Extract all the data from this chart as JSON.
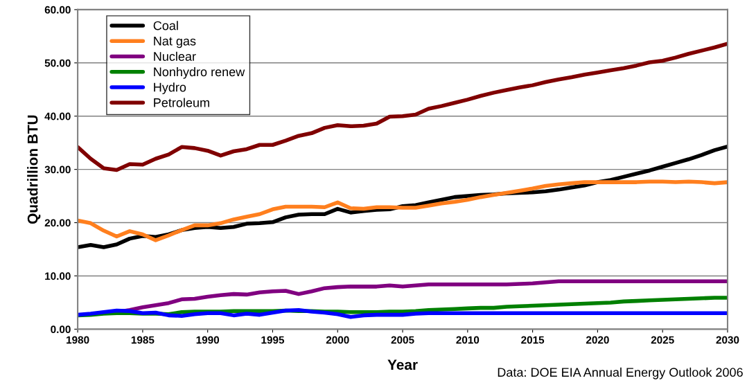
{
  "chart_data": {
    "type": "line",
    "ylabel": "Quadrillion BTU",
    "xlabel": "Year",
    "annotations": [
      "Data: DOE EIA Annual Energy Outlook 2006"
    ],
    "x": [
      1980,
      1981,
      1982,
      1983,
      1984,
      1985,
      1986,
      1987,
      1988,
      1989,
      1990,
      1991,
      1992,
      1993,
      1994,
      1995,
      1996,
      1997,
      1998,
      1999,
      2000,
      2001,
      2002,
      2003,
      2004,
      2005,
      2006,
      2007,
      2008,
      2009,
      2010,
      2011,
      2012,
      2013,
      2014,
      2015,
      2016,
      2017,
      2018,
      2019,
      2020,
      2021,
      2022,
      2023,
      2024,
      2025,
      2026,
      2027,
      2028,
      2029,
      2030
    ],
    "series": [
      {
        "name": "Coal",
        "color": "#000000",
        "values": [
          15.4,
          15.8,
          15.4,
          15.9,
          17.0,
          17.5,
          17.3,
          17.8,
          18.6,
          19.0,
          19.2,
          19.0,
          19.2,
          19.8,
          19.9,
          20.1,
          21.0,
          21.5,
          21.6,
          21.6,
          22.6,
          21.9,
          22.2,
          22.4,
          22.5,
          23.1,
          23.3,
          23.8,
          24.3,
          24.8,
          25.0,
          25.2,
          25.3,
          25.5,
          25.6,
          25.7,
          25.9,
          26.2,
          26.6,
          27.0,
          27.6,
          28.0,
          28.6,
          29.2,
          29.8,
          30.5,
          31.2,
          31.9,
          32.7,
          33.6,
          34.3
        ]
      },
      {
        "name": "Nat gas",
        "color": "#ff7f1e",
        "values": [
          20.4,
          19.9,
          18.5,
          17.4,
          18.4,
          17.8,
          16.7,
          17.6,
          18.6,
          19.5,
          19.5,
          19.9,
          20.6,
          21.1,
          21.6,
          22.5,
          23.0,
          23.0,
          23.0,
          22.9,
          23.8,
          22.7,
          22.6,
          22.9,
          22.9,
          22.8,
          22.8,
          23.2,
          23.6,
          23.9,
          24.3,
          24.8,
          25.2,
          25.6,
          26.0,
          26.4,
          26.9,
          27.2,
          27.4,
          27.6,
          27.6,
          27.6,
          27.6,
          27.6,
          27.7,
          27.7,
          27.6,
          27.7,
          27.6,
          27.4,
          27.6
        ]
      },
      {
        "name": "Nuclear",
        "color": "#800080",
        "values": [
          null,
          null,
          null,
          3.2,
          3.6,
          4.1,
          4.5,
          4.9,
          5.6,
          5.7,
          6.1,
          6.4,
          6.6,
          6.5,
          6.9,
          7.1,
          7.2,
          6.6,
          7.1,
          7.7,
          7.9,
          8.0,
          8.0,
          8.0,
          8.2,
          8.0,
          8.2,
          8.4,
          8.4,
          8.4,
          8.4,
          8.4,
          8.4,
          8.4,
          8.5,
          8.6,
          8.8,
          9.0,
          9.0,
          9.0,
          9.0,
          9.0,
          9.0,
          9.0,
          9.0,
          9.0,
          9.0,
          9.0,
          9.0,
          9.0,
          9.0
        ]
      },
      {
        "name": "Nonhydro renew",
        "color": "#008000",
        "values": [
          2.6,
          2.7,
          2.9,
          3.0,
          3.0,
          2.9,
          2.9,
          2.8,
          3.2,
          3.3,
          3.3,
          3.3,
          3.4,
          3.4,
          3.4,
          3.4,
          3.5,
          3.4,
          3.4,
          3.3,
          3.3,
          3.2,
          3.2,
          3.2,
          3.3,
          3.3,
          3.4,
          3.6,
          3.7,
          3.8,
          3.9,
          4.0,
          4.0,
          4.2,
          4.3,
          4.4,
          4.5,
          4.6,
          4.7,
          4.8,
          4.9,
          5.0,
          5.2,
          5.3,
          5.4,
          5.5,
          5.6,
          5.7,
          5.8,
          5.9,
          5.9
        ]
      },
      {
        "name": "Hydro",
        "color": "#0000ff",
        "values": [
          2.7,
          2.9,
          3.2,
          3.5,
          3.4,
          3.0,
          3.1,
          2.6,
          2.5,
          2.8,
          3.0,
          3.0,
          2.6,
          2.9,
          2.7,
          3.1,
          3.5,
          3.6,
          3.3,
          3.1,
          2.8,
          2.3,
          2.6,
          2.7,
          2.7,
          2.7,
          2.9,
          3.0,
          3.0,
          3.0,
          3.0,
          3.0,
          3.0,
          3.0,
          3.0,
          3.0,
          3.0,
          3.0,
          3.0,
          3.0,
          3.0,
          3.0,
          3.0,
          3.0,
          3.0,
          3.0,
          3.0,
          3.0,
          3.0,
          3.0,
          3.0
        ]
      },
      {
        "name": "Petroleum",
        "color": "#800000",
        "values": [
          34.2,
          32.0,
          30.2,
          29.9,
          31.0,
          30.9,
          32.0,
          32.8,
          34.2,
          34.0,
          33.5,
          32.6,
          33.4,
          33.8,
          34.6,
          34.6,
          35.4,
          36.3,
          36.8,
          37.8,
          38.3,
          38.1,
          38.2,
          38.6,
          39.9,
          40.0,
          40.3,
          41.4,
          41.9,
          42.5,
          43.1,
          43.8,
          44.4,
          44.9,
          45.4,
          45.8,
          46.4,
          46.9,
          47.3,
          47.8,
          48.2,
          48.6,
          49.0,
          49.5,
          50.1,
          50.4,
          51.0,
          51.7,
          52.3,
          52.9,
          53.6
        ]
      }
    ],
    "xlim": [
      1980,
      2030
    ],
    "xticks": [
      1980,
      1985,
      1990,
      1995,
      2000,
      2005,
      2010,
      2015,
      2020,
      2025,
      2030
    ],
    "ylim": [
      0,
      60
    ],
    "yticks": [
      {
        "value": 0,
        "label": "0.00"
      },
      {
        "value": 10,
        "label": "10.00"
      },
      {
        "value": 20,
        "label": "20.00"
      },
      {
        "value": 30,
        "label": "30.00"
      },
      {
        "value": 40,
        "label": "40.00"
      },
      {
        "value": 50,
        "label": "50.00"
      },
      {
        "value": 60,
        "label": "60.00"
      }
    ],
    "grid": "y",
    "legend": "top left",
    "marker": "none",
    "line_style": "solid"
  }
}
